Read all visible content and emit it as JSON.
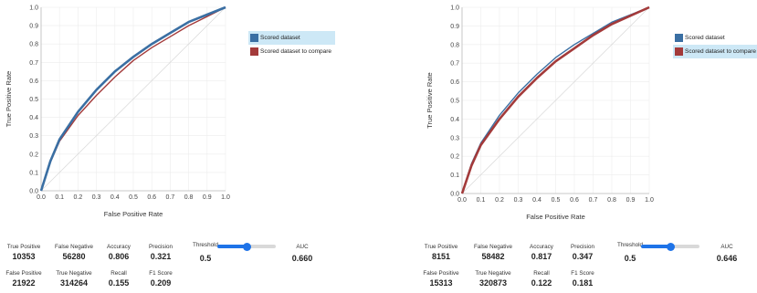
{
  "panels": [
    {
      "legend": [
        {
          "label": "Scored dataset",
          "color": "#3a6fa3",
          "highlighted": true
        },
        {
          "label": "Scored dataset to compare",
          "color": "#a33a3a",
          "highlighted": false
        }
      ],
      "metrics": {
        "true_positive_label": "True Positive",
        "true_positive": "10353",
        "false_negative_label": "False Negative",
        "false_negative": "56280",
        "accuracy_label": "Accuracy",
        "accuracy": "0.806",
        "precision_label": "Precision",
        "precision": "0.321",
        "false_positive_label": "False Positive",
        "false_positive": "21922",
        "true_negative_label": "True Negative",
        "true_negative": "314264",
        "recall_label": "Recall",
        "recall": "0.155",
        "f1_label": "F1 Score",
        "f1": "0.209",
        "threshold_label": "Threshold",
        "threshold": "0.5",
        "threshold_level": 0.5,
        "auc_label": "AUC",
        "auc": "0.660"
      }
    },
    {
      "legend": [
        {
          "label": "Scored dataset",
          "color": "#3a6fa3",
          "highlighted": false
        },
        {
          "label": "Scored dataset to compare",
          "color": "#a33a3a",
          "highlighted": true
        }
      ],
      "metrics": {
        "true_positive_label": "True Positive",
        "true_positive": "8151",
        "false_negative_label": "False Negative",
        "false_negative": "58482",
        "accuracy_label": "Accuracy",
        "accuracy": "0.817",
        "precision_label": "Precision",
        "precision": "0.347",
        "false_positive_label": "False Positive",
        "false_positive": "15313",
        "true_negative_label": "True Negative",
        "true_negative": "320873",
        "recall_label": "Recall",
        "recall": "0.122",
        "f1_label": "F1 Score",
        "f1": "0.181",
        "threshold_label": "Threshold",
        "threshold": "0.5",
        "threshold_level": 0.5,
        "auc_label": "AUC",
        "auc": "0.646"
      }
    }
  ],
  "chart_data": [
    {
      "type": "line",
      "xlabel": "False Positive Rate",
      "ylabel": "True Positive Rate",
      "xlim": [
        0,
        1
      ],
      "ylim": [
        0,
        1
      ],
      "x_ticks": [
        "0.0",
        "0.1",
        "0.2",
        "0.3",
        "0.4",
        "0.5",
        "0.6",
        "0.7",
        "0.8",
        "0.9",
        "1.0"
      ],
      "y_ticks": [
        "0.0",
        "0.1",
        "0.2",
        "0.3",
        "0.4",
        "0.5",
        "0.6",
        "0.7",
        "0.8",
        "0.9",
        "1.0"
      ],
      "reference_line": true,
      "series": [
        {
          "name": "Scored dataset",
          "color": "#3a6fa3",
          "x": [
            0,
            0.05,
            0.1,
            0.2,
            0.3,
            0.4,
            0.5,
            0.6,
            0.7,
            0.8,
            0.9,
            1.0
          ],
          "y": [
            0,
            0.16,
            0.28,
            0.43,
            0.55,
            0.65,
            0.73,
            0.8,
            0.86,
            0.92,
            0.96,
            1.0
          ]
        },
        {
          "name": "Scored dataset to compare",
          "color": "#a33a3a",
          "x": [
            0,
            0.05,
            0.1,
            0.2,
            0.3,
            0.4,
            0.5,
            0.6,
            0.7,
            0.8,
            0.9,
            1.0
          ],
          "y": [
            0,
            0.155,
            0.27,
            0.41,
            0.52,
            0.62,
            0.71,
            0.78,
            0.84,
            0.9,
            0.95,
            1.0
          ]
        }
      ]
    },
    {
      "type": "line",
      "xlabel": "False Positive Rate",
      "ylabel": "True Positive Rate",
      "xlim": [
        0,
        1
      ],
      "ylim": [
        0,
        1
      ],
      "x_ticks": [
        "0.0",
        "0.1",
        "0.2",
        "0.3",
        "0.4",
        "0.5",
        "0.6",
        "0.7",
        "0.8",
        "0.9",
        "1.0"
      ],
      "y_ticks": [
        "0.0",
        "0.1",
        "0.2",
        "0.3",
        "0.4",
        "0.5",
        "0.6",
        "0.7",
        "0.8",
        "0.9",
        "1.0"
      ],
      "reference_line": true,
      "series": [
        {
          "name": "Scored dataset",
          "color": "#3a6fa3",
          "x": [
            0,
            0.05,
            0.1,
            0.2,
            0.3,
            0.4,
            0.5,
            0.6,
            0.7,
            0.8,
            0.9,
            1.0
          ],
          "y": [
            0,
            0.16,
            0.27,
            0.42,
            0.54,
            0.64,
            0.73,
            0.8,
            0.86,
            0.92,
            0.96,
            1.0
          ]
        },
        {
          "name": "Scored dataset to compare",
          "color": "#a33a3a",
          "x": [
            0,
            0.05,
            0.1,
            0.2,
            0.3,
            0.4,
            0.5,
            0.6,
            0.7,
            0.8,
            0.9,
            1.0
          ],
          "y": [
            0,
            0.15,
            0.26,
            0.4,
            0.52,
            0.62,
            0.71,
            0.78,
            0.85,
            0.91,
            0.955,
            1.0
          ]
        }
      ]
    }
  ]
}
